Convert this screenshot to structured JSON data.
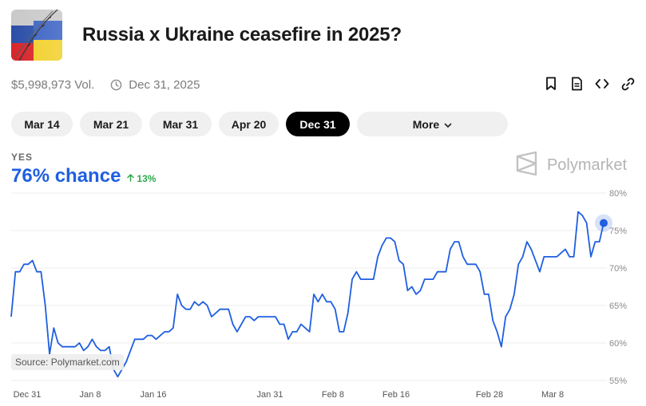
{
  "market": {
    "title": "Russia x Ukraine ceasefire in 2025?",
    "volume": "$5,998,973 Vol.",
    "end_date": "Dec 31, 2025"
  },
  "actions": [
    "bookmark-icon",
    "document-icon",
    "code-icon",
    "link-icon"
  ],
  "tabs": [
    {
      "label": "Mar 14",
      "active": false
    },
    {
      "label": "Mar 21",
      "active": false
    },
    {
      "label": "Mar 31",
      "active": false
    },
    {
      "label": "Apr 20",
      "active": false
    },
    {
      "label": "Dec 31",
      "active": true
    }
  ],
  "more_label": "More",
  "outcome": {
    "label": "YES",
    "chance": "76% chance",
    "change": "13%"
  },
  "brand": {
    "name": "Polymarket"
  },
  "source": "Source: Polymarket.com",
  "colors": {
    "line": "#1f5fe0",
    "positive": "#2ea84d",
    "active_tab": "#000000"
  },
  "chart_data": {
    "type": "line",
    "ylim": [
      55,
      80
    ],
    "yticks": [
      "80%",
      "75%",
      "70%",
      "65%",
      "60%",
      "55%"
    ],
    "xticks": [
      "Dec 31",
      "Jan 8",
      "Jan 16",
      "Jan 31",
      "Feb 8",
      "Feb 16",
      "Feb 28",
      "Mar 8"
    ],
    "series": [
      {
        "values": [
          63.5,
          69.5,
          69.5,
          70.5,
          70.5,
          71,
          69.5,
          69.5,
          65,
          58.5,
          62,
          60,
          59.5,
          59.5,
          59.5,
          59.5,
          60,
          59,
          59.5,
          60.5,
          59.5,
          59,
          59,
          59.5,
          56.5,
          55.5,
          56.5,
          57.5,
          59,
          60.5,
          60.5,
          60.5,
          61,
          61,
          60.5,
          61,
          61.5,
          61.5,
          62,
          66.5,
          65,
          64.5,
          64.5,
          65.5,
          65,
          65.5,
          65,
          63.5,
          64,
          64.5,
          64.5,
          64.5,
          62.5,
          61.5,
          62.5,
          63.5,
          63.5,
          63,
          63.5,
          63.5,
          63.5,
          63.5,
          63.5,
          62.5,
          62.5,
          60.5,
          61.5,
          61.5,
          62.5,
          62,
          61.5,
          66.5,
          65.5,
          66.5,
          65.5,
          65.5,
          64.5,
          61.5,
          61.5,
          64,
          68.5,
          69.5,
          68.5,
          68.5,
          68.5,
          68.5,
          71.5,
          73,
          74,
          74,
          73.5,
          71,
          70.5,
          67,
          67.5,
          66.5,
          67,
          68.5,
          68.5,
          68.5,
          69.5,
          69.5,
          69.5,
          72.5,
          73.5,
          73.5,
          71.5,
          70.5,
          70.5,
          70.5,
          69.5,
          66.5,
          66.5,
          63,
          61.5,
          59.5,
          63.5,
          64.5,
          66.5,
          70.5,
          71.5,
          73.5,
          72.5,
          71,
          69.5,
          71.5,
          71.5,
          71.5,
          71.5,
          72,
          72.5,
          71.5,
          71.5,
          77.5,
          77,
          76,
          71.5,
          73.5,
          73.5,
          76
        ]
      }
    ]
  }
}
